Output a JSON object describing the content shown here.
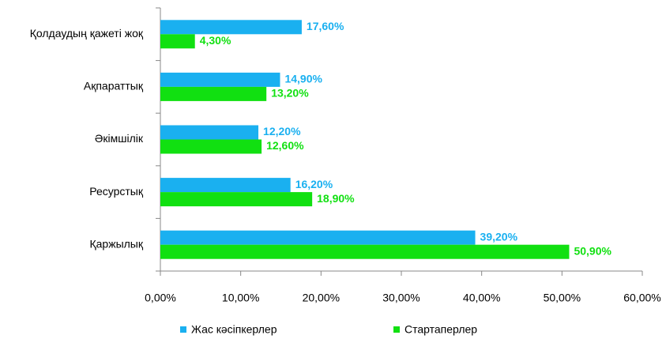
{
  "chart_data": {
    "type": "barh",
    "categories": [
      "Қолдаудың қажеті жоқ",
      "Ақпараттық",
      "Әкімшілік",
      "Ресурстық",
      "Қаржылық"
    ],
    "series": [
      {
        "name": "Жас кәсіпкерлер",
        "color": "#1ab0f0",
        "values": [
          17.6,
          14.9,
          12.2,
          16.2,
          39.2
        ],
        "value_labels": [
          "17,60%",
          "14,90%",
          "12,20%",
          "16,20%",
          "39,20%"
        ]
      },
      {
        "name": "Стартаперлер",
        "color": "#11e011",
        "values": [
          4.3,
          13.2,
          12.6,
          18.9,
          50.9
        ],
        "value_labels": [
          "4,30%",
          "13,20%",
          "12,60%",
          "18,90%",
          "50,90%"
        ]
      }
    ],
    "xlim": [
      0,
      60
    ],
    "xticks": [
      {
        "value": 0,
        "label": "0,00%"
      },
      {
        "value": 10,
        "label": "10,00%"
      },
      {
        "value": 20,
        "label": "20,00%"
      },
      {
        "value": 30,
        "label": "30,00%"
      },
      {
        "value": 40,
        "label": "40,00%"
      },
      {
        "value": 50,
        "label": "50,00%"
      },
      {
        "value": 60,
        "label": "60,00%"
      }
    ],
    "legend": "bottom"
  }
}
